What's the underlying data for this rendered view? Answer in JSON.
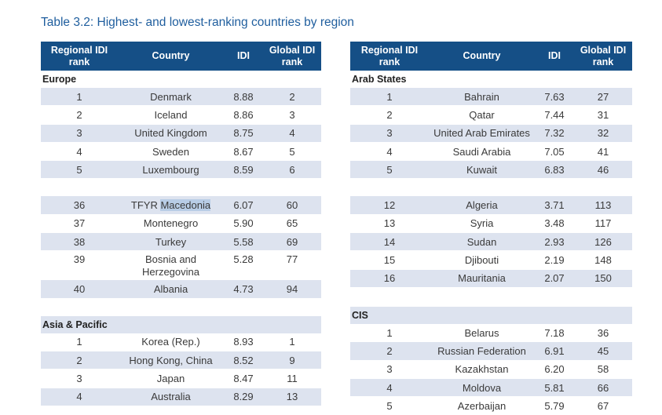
{
  "title": "Table 3.2:   Highest- and lowest-ranking countries by region",
  "headers": {
    "regional": "Regional IDI rank",
    "regional_l1": "Regional IDI",
    "regional_l2": "rank",
    "country": "Country",
    "idi": "IDI",
    "global_l1": "Global IDI",
    "global_l2": "rank"
  },
  "left": {
    "europe": {
      "label": "Europe",
      "top": [
        {
          "rank": "1",
          "country": "Denmark",
          "idi": "8.88",
          "global": "2"
        },
        {
          "rank": "2",
          "country": "Iceland",
          "idi": "8.86",
          "global": "3"
        },
        {
          "rank": "3",
          "country": "United Kingdom",
          "idi": "8.75",
          "global": "4"
        },
        {
          "rank": "4",
          "country": "Sweden",
          "idi": "8.67",
          "global": "5"
        },
        {
          "rank": "5",
          "country": "Luxembourg",
          "idi": "8.59",
          "global": "6"
        }
      ],
      "bottom": [
        {
          "rank": "36",
          "country_a": "TFYR ",
          "country_b": "Macedonia",
          "idi": "6.07",
          "global": "60"
        },
        {
          "rank": "37",
          "country": "Montenegro",
          "idi": "5.90",
          "global": "65"
        },
        {
          "rank": "38",
          "country": "Turkey",
          "idi": "5.58",
          "global": "69"
        },
        {
          "rank": "39",
          "country_l1": "Bosnia and",
          "country_l2": "Herzegovina",
          "idi": "5.28",
          "global": "77"
        },
        {
          "rank": "40",
          "country": "Albania",
          "idi": "4.73",
          "global": "94"
        }
      ]
    },
    "asia": {
      "label": "Asia & Pacific",
      "top": [
        {
          "rank": "1",
          "country": "Korea (Rep.)",
          "idi": "8.93",
          "global": "1"
        },
        {
          "rank": "2",
          "country": "Hong Kong, China",
          "idi": "8.52",
          "global": "9"
        },
        {
          "rank": "3",
          "country": "Japan",
          "idi": "8.47",
          "global": "11"
        },
        {
          "rank": "4",
          "country": "Australia",
          "idi": "8.29",
          "global": "13"
        }
      ]
    }
  },
  "right": {
    "arab": {
      "label": "Arab States",
      "top": [
        {
          "rank": "1",
          "country": "Bahrain",
          "idi": "7.63",
          "global": "27"
        },
        {
          "rank": "2",
          "country": "Qatar",
          "idi": "7.44",
          "global": "31"
        },
        {
          "rank": "3",
          "country": "United Arab Emirates",
          "idi": "7.32",
          "global": "32"
        },
        {
          "rank": "4",
          "country": "Saudi Arabia",
          "idi": "7.05",
          "global": "41"
        },
        {
          "rank": "5",
          "country": "Kuwait",
          "idi": "6.83",
          "global": "46"
        }
      ],
      "bottom": [
        {
          "rank": "12",
          "country": "Algeria",
          "idi": "3.71",
          "global": "113"
        },
        {
          "rank": "13",
          "country": "Syria",
          "idi": "3.48",
          "global": "117"
        },
        {
          "rank": "14",
          "country": "Sudan",
          "idi": "2.93",
          "global": "126"
        },
        {
          "rank": "15",
          "country": "Djibouti",
          "idi": "2.19",
          "global": "148"
        },
        {
          "rank": "16",
          "country": "Mauritania",
          "idi": "2.07",
          "global": "150"
        }
      ]
    },
    "cis": {
      "label": "CIS",
      "top": [
        {
          "rank": "1",
          "country": "Belarus",
          "idi": "7.18",
          "global": "36"
        },
        {
          "rank": "2",
          "country": "Russian Federation",
          "idi": "6.91",
          "global": "45"
        },
        {
          "rank": "3",
          "country": "Kazakhstan",
          "idi": "6.20",
          "global": "58"
        },
        {
          "rank": "4",
          "country": "Moldova",
          "idi": "5.81",
          "global": "66"
        },
        {
          "rank": "5",
          "country": "Azerbaijan",
          "idi": "5.79",
          "global": "67"
        }
      ]
    }
  }
}
